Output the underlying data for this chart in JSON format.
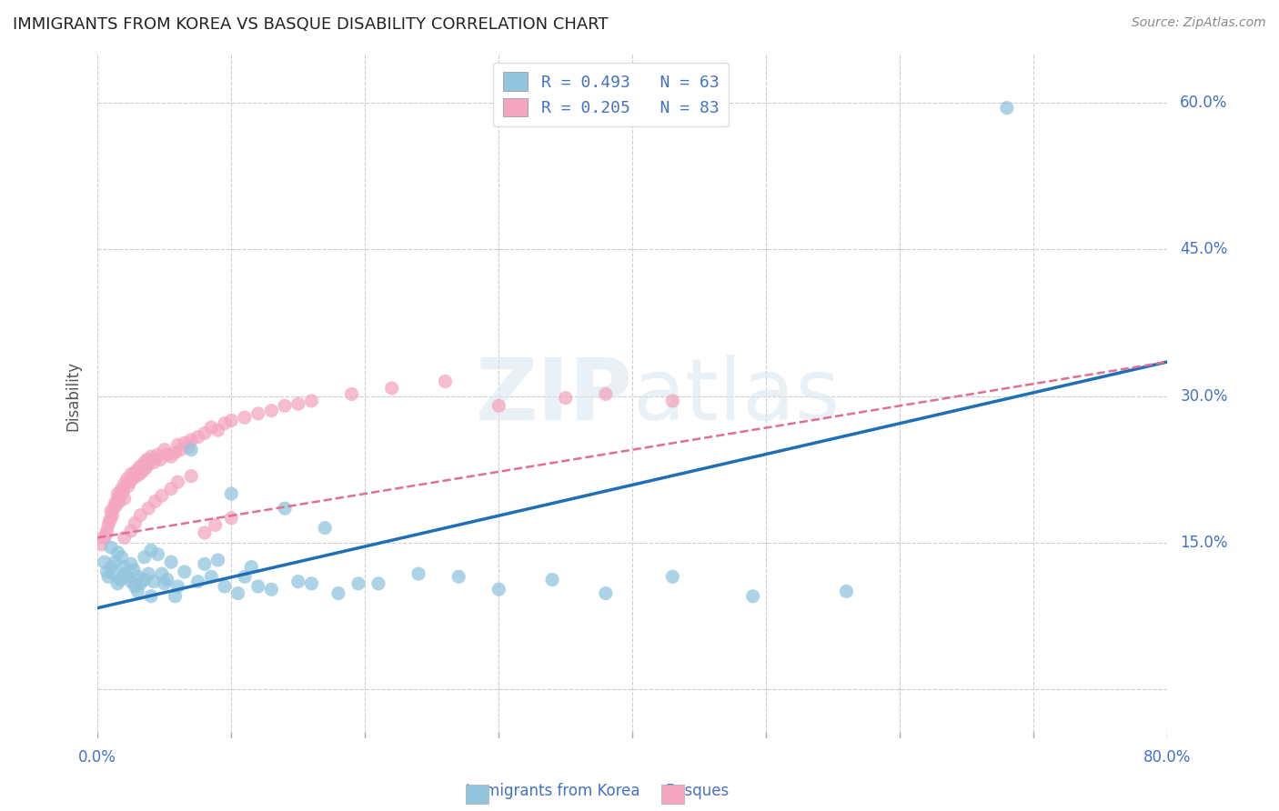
{
  "title": "IMMIGRANTS FROM KOREA VS BASQUE DISABILITY CORRELATION CHART",
  "source": "Source: ZipAtlas.com",
  "ylabel": "Disability",
  "ytick_values": [
    0.0,
    0.15,
    0.3,
    0.45,
    0.6
  ],
  "ytick_labels": [
    "",
    "15.0%",
    "30.0%",
    "45.0%",
    "60.0%"
  ],
  "xtick_vals": [
    0.0,
    0.1,
    0.2,
    0.3,
    0.4,
    0.5,
    0.6,
    0.7,
    0.8
  ],
  "xlim": [
    0.0,
    0.8
  ],
  "ylim": [
    -0.05,
    0.65
  ],
  "watermark": "ZIPatlas",
  "legend_blue_label": "Immigrants from Korea",
  "legend_pink_label": "Basques",
  "legend_r_blue": "R = 0.493",
  "legend_n_blue": "N = 63",
  "legend_r_pink": "R = 0.205",
  "legend_n_pink": "N = 83",
  "blue_color": "#92c5de",
  "pink_color": "#f4a6c0",
  "blue_line_color": "#1f6fb5",
  "pink_line_color": "#e07090",
  "grid_color": "#cccccc",
  "background_color": "#ffffff",
  "title_color": "#222222",
  "axis_label_color": "#4472c4",
  "blue_line_x": [
    0.0,
    0.8
  ],
  "blue_line_y": [
    0.083,
    0.335
  ],
  "pink_line_x": [
    0.0,
    0.8
  ],
  "pink_line_y": [
    0.155,
    0.335
  ],
  "blue_scatter_x": [
    0.005,
    0.007,
    0.008,
    0.01,
    0.01,
    0.012,
    0.013,
    0.015,
    0.015,
    0.017,
    0.018,
    0.02,
    0.02,
    0.022,
    0.025,
    0.025,
    0.027,
    0.028,
    0.03,
    0.03,
    0.032,
    0.035,
    0.035,
    0.038,
    0.04,
    0.04,
    0.042,
    0.045,
    0.048,
    0.05,
    0.052,
    0.055,
    0.058,
    0.06,
    0.065,
    0.07,
    0.075,
    0.08,
    0.085,
    0.09,
    0.095,
    0.1,
    0.105,
    0.11,
    0.115,
    0.12,
    0.13,
    0.14,
    0.15,
    0.16,
    0.17,
    0.18,
    0.195,
    0.21,
    0.24,
    0.27,
    0.3,
    0.34,
    0.38,
    0.43,
    0.49,
    0.56,
    0.68
  ],
  "blue_scatter_y": [
    0.13,
    0.12,
    0.115,
    0.145,
    0.125,
    0.118,
    0.13,
    0.14,
    0.108,
    0.112,
    0.135,
    0.118,
    0.125,
    0.115,
    0.128,
    0.11,
    0.122,
    0.105,
    0.115,
    0.1,
    0.108,
    0.112,
    0.135,
    0.118,
    0.142,
    0.095,
    0.11,
    0.138,
    0.118,
    0.108,
    0.112,
    0.13,
    0.095,
    0.105,
    0.12,
    0.245,
    0.11,
    0.128,
    0.115,
    0.132,
    0.105,
    0.2,
    0.098,
    0.115,
    0.125,
    0.105,
    0.102,
    0.185,
    0.11,
    0.108,
    0.165,
    0.098,
    0.108,
    0.108,
    0.118,
    0.115,
    0.102,
    0.112,
    0.098,
    0.115,
    0.095,
    0.1,
    0.595
  ],
  "pink_scatter_x": [
    0.003,
    0.005,
    0.006,
    0.007,
    0.008,
    0.009,
    0.01,
    0.01,
    0.011,
    0.012,
    0.013,
    0.014,
    0.015,
    0.015,
    0.016,
    0.017,
    0.018,
    0.019,
    0.02,
    0.02,
    0.022,
    0.023,
    0.024,
    0.025,
    0.026,
    0.027,
    0.028,
    0.029,
    0.03,
    0.031,
    0.032,
    0.033,
    0.034,
    0.035,
    0.036,
    0.037,
    0.038,
    0.04,
    0.042,
    0.043,
    0.045,
    0.047,
    0.05,
    0.052,
    0.055,
    0.058,
    0.06,
    0.062,
    0.065,
    0.068,
    0.07,
    0.075,
    0.08,
    0.085,
    0.09,
    0.095,
    0.1,
    0.11,
    0.12,
    0.13,
    0.14,
    0.15,
    0.16,
    0.19,
    0.22,
    0.26,
    0.3,
    0.35,
    0.38,
    0.02,
    0.025,
    0.028,
    0.032,
    0.038,
    0.043,
    0.048,
    0.055,
    0.06,
    0.07,
    0.08,
    0.088,
    0.1,
    0.43
  ],
  "pink_scatter_y": [
    0.148,
    0.155,
    0.158,
    0.162,
    0.168,
    0.172,
    0.175,
    0.182,
    0.178,
    0.185,
    0.19,
    0.188,
    0.195,
    0.2,
    0.192,
    0.198,
    0.205,
    0.202,
    0.21,
    0.195,
    0.215,
    0.208,
    0.212,
    0.22,
    0.215,
    0.218,
    0.222,
    0.218,
    0.225,
    0.22,
    0.228,
    0.222,
    0.225,
    0.232,
    0.226,
    0.235,
    0.23,
    0.238,
    0.232,
    0.236,
    0.24,
    0.235,
    0.245,
    0.24,
    0.238,
    0.242,
    0.25,
    0.245,
    0.252,
    0.248,
    0.255,
    0.258,
    0.262,
    0.268,
    0.265,
    0.272,
    0.275,
    0.278,
    0.282,
    0.285,
    0.29,
    0.292,
    0.295,
    0.302,
    0.308,
    0.315,
    0.29,
    0.298,
    0.302,
    0.155,
    0.162,
    0.17,
    0.178,
    0.185,
    0.192,
    0.198,
    0.205,
    0.212,
    0.218,
    0.16,
    0.168,
    0.175,
    0.295
  ]
}
